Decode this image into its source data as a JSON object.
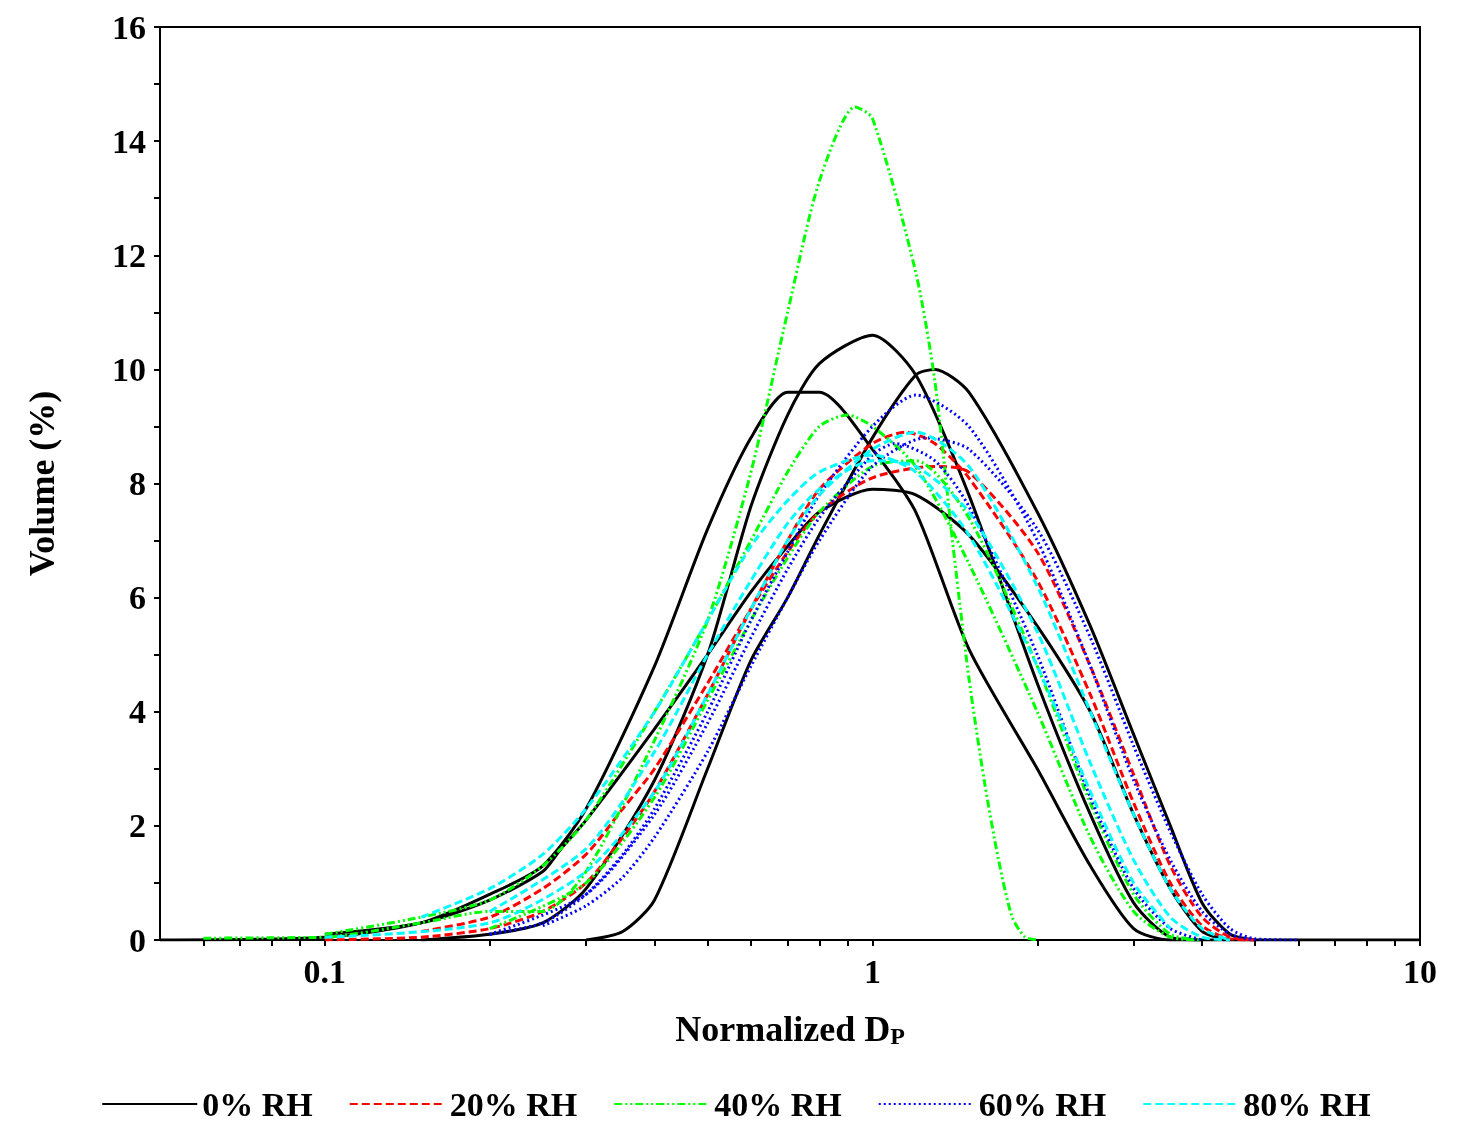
{
  "chart_data": {
    "type": "line",
    "xlabel": "Normalized D$_{P}$",
    "ylabel": "Volume (%)",
    "log": "x",
    "xlim": [
      0.05,
      10
    ],
    "ylim": [
      0,
      16
    ],
    "xticks": [
      {
        "value": 0.06,
        "label": null
      },
      {
        "value": 0.07,
        "label": null
      },
      {
        "value": 0.08,
        "label": null
      },
      {
        "value": 0.09,
        "label": null
      },
      {
        "value": 0.1,
        "label": "0.1"
      },
      {
        "value": 0.2,
        "label": null
      },
      {
        "value": 0.3,
        "label": null
      },
      {
        "value": 0.4,
        "label": null
      },
      {
        "value": 0.5,
        "label": null
      },
      {
        "value": 0.6,
        "label": null
      },
      {
        "value": 0.7,
        "label": null
      },
      {
        "value": 0.8,
        "label": null
      },
      {
        "value": 0.9,
        "label": null
      },
      1,
      {
        "value": 2,
        "label": null
      },
      {
        "value": 3,
        "label": null
      },
      {
        "value": 4,
        "label": null
      },
      {
        "value": 5,
        "label": null
      },
      {
        "value": 6,
        "label": null
      },
      {
        "value": 7,
        "label": null
      },
      {
        "value": 8,
        "label": null
      },
      {
        "value": 9,
        "label": null
      },
      10
    ],
    "yticks": [
      0,
      {
        "value": 1,
        "label": null
      },
      2,
      {
        "value": 3,
        "label": null
      },
      4,
      {
        "value": 5,
        "label": null
      },
      6,
      {
        "value": 7,
        "label": null
      },
      8,
      {
        "value": 9,
        "label": null
      },
      10,
      {
        "value": 11,
        "label": null
      },
      12,
      {
        "value": 13,
        "label": null
      },
      14,
      {
        "value": 15,
        "label": null
      },
      16
    ],
    "grid": false,
    "legend": "bottom",
    "marker": "none",
    "series": [
      {
        "name": "0% RH",
        "color": "#000000",
        "line_style": "solid",
        "x": [
          0.05,
          0.1,
          0.15,
          0.2,
          0.25,
          0.3,
          0.4,
          0.5,
          0.6,
          0.7,
          0.8,
          1,
          1.2,
          1.5,
          2,
          2.5,
          3,
          3.5,
          10
        ],
        "values": [
          0,
          0.05,
          0.3,
          0.8,
          1.3,
          2.3,
          4.8,
          7.2,
          8.8,
          9.6,
          9.6,
          8.6,
          7.5,
          5.1,
          3.0,
          1.3,
          0.2,
          0,
          0
        ]
      },
      {
        "color": "#000000",
        "line_style": "solid",
        "x": [
          0.15,
          0.2,
          0.25,
          0.3,
          0.4,
          0.5,
          0.6,
          0.7,
          0.8,
          1,
          1.2,
          1.5,
          2,
          2.5,
          3,
          3.5,
          4
        ],
        "values": [
          0,
          0.1,
          0.3,
          0.9,
          2.8,
          5.0,
          7.6,
          9.2,
          10.1,
          10.6,
          9.9,
          7.8,
          4.5,
          2.2,
          0.65,
          0.05,
          0
        ]
      },
      {
        "color": "#000000",
        "line_style": "solid",
        "x": [
          0.3,
          0.35,
          0.4,
          0.5,
          0.6,
          0.7,
          0.8,
          1,
          1.2,
          1.3,
          1.5,
          2,
          2.5,
          3,
          3.5,
          4,
          4.5,
          5
        ],
        "values": [
          0,
          0.15,
          0.7,
          3.0,
          4.9,
          6.0,
          7.1,
          8.8,
          9.9,
          10,
          9.6,
          7.5,
          5.5,
          3.6,
          2.0,
          0.65,
          0.1,
          0
        ]
      },
      {
        "color": "#000000",
        "line_style": "solid",
        "x": [
          0.1,
          0.15,
          0.2,
          0.25,
          0.27,
          0.3,
          0.4,
          0.5,
          0.6,
          0.7,
          0.8,
          1,
          1.2,
          1.5,
          2,
          2.5,
          3,
          3.5,
          4,
          4.5
        ],
        "values": [
          0.1,
          0.3,
          0.7,
          1.2,
          1.6,
          2.1,
          3.7,
          5.0,
          6.1,
          6.9,
          7.5,
          7.9,
          7.8,
          7.1,
          5.5,
          4.0,
          2.2,
          0.9,
          0.15,
          0
        ]
      },
      {
        "name": "20% RH",
        "color": "#ff0000",
        "line_style": "dashed",
        "x": [
          0.1,
          0.15,
          0.2,
          0.25,
          0.3,
          0.35,
          0.4,
          0.5,
          0.6,
          0.7,
          0.8,
          1,
          1.15,
          1.3,
          1.5,
          2,
          2.5,
          3,
          3.5,
          4,
          4.5,
          5
        ],
        "values": [
          0,
          0.05,
          0.2,
          0.5,
          1.0,
          1.8,
          2.6,
          4.3,
          5.8,
          7.0,
          7.9,
          8.7,
          8.9,
          8.7,
          8.1,
          6.3,
          4.3,
          2.4,
          1.0,
          0.25,
          0.02,
          0
        ]
      },
      {
        "color": "#ff0000",
        "line_style": "dashed",
        "x": [
          0.15,
          0.2,
          0.25,
          0.3,
          0.35,
          0.4,
          0.5,
          0.6,
          0.7,
          0.8,
          1,
          1.3,
          1.5,
          2,
          2.5,
          3,
          3.5,
          4,
          4.5,
          5
        ],
        "values": [
          0.15,
          0.4,
          0.9,
          1.5,
          2.3,
          3.0,
          4.5,
          5.8,
          6.8,
          7.5,
          8.1,
          8.3,
          8.2,
          6.8,
          4.8,
          2.9,
          1.3,
          0.4,
          0.05,
          0
        ]
      },
      {
        "name": "40% RH",
        "color": "#00ff00",
        "line_style": "dashdot",
        "x": [
          0.06,
          0.08,
          0.1,
          0.15,
          0.2,
          0.25,
          0.3,
          0.4,
          0.5,
          0.6,
          0.7,
          0.8,
          0.93,
          1,
          1.2,
          1.3,
          1.4,
          1.5,
          1.6,
          1.7,
          1.8,
          1.9,
          2
        ],
        "values": [
          0.03,
          0.04,
          0.05,
          0.3,
          0.5,
          0.5,
          1.2,
          3.5,
          5.6,
          8.2,
          11.0,
          13.3,
          14.6,
          14.4,
          11.7,
          9.8,
          7.0,
          4.6,
          2.8,
          1.4,
          0.4,
          0.05,
          0
        ]
      },
      {
        "color": "#00ff00",
        "line_style": "dashdot",
        "x": [
          0.1,
          0.15,
          0.2,
          0.25,
          0.3,
          0.4,
          0.5,
          0.6,
          0.7,
          0.8,
          0.9,
          1,
          1.2,
          1.5,
          2,
          2.5,
          3,
          3.5,
          4
        ],
        "values": [
          0.1,
          0.4,
          0.7,
          1.3,
          2.1,
          4.0,
          5.6,
          7.0,
          8.2,
          9.0,
          9.2,
          9.0,
          8.3,
          6.6,
          4.0,
          1.8,
          0.5,
          0.05,
          0
        ]
      },
      {
        "color": "#00ff00",
        "line_style": "dashdot",
        "x": [
          0.2,
          0.3,
          0.4,
          0.5,
          0.6,
          0.7,
          0.8,
          1,
          1.2,
          1.5,
          2,
          2.5,
          3,
          3.5,
          4
        ],
        "values": [
          0.2,
          1.0,
          2.5,
          4.2,
          5.6,
          6.7,
          7.5,
          8.3,
          8.4,
          7.4,
          4.8,
          2.4,
          0.8,
          0.1,
          0
        ]
      },
      {
        "name": "60% RH",
        "color": "#0000ff",
        "line_style": "dotted",
        "x": [
          0.2,
          0.25,
          0.3,
          0.35,
          0.4,
          0.5,
          0.6,
          0.7,
          0.8,
          1,
          1.2,
          1.5,
          2,
          2.5,
          3,
          3.5,
          4,
          4.5,
          5
        ],
        "values": [
          0.1,
          0.3,
          0.8,
          1.5,
          2.3,
          4.0,
          5.6,
          6.8,
          7.8,
          9.0,
          9.55,
          9.0,
          7.0,
          4.8,
          2.8,
          1.4,
          0.5,
          0.1,
          0
        ]
      },
      {
        "color": "#0000ff",
        "line_style": "dotted",
        "x": [
          0.25,
          0.3,
          0.35,
          0.4,
          0.5,
          0.6,
          0.7,
          0.8,
          1,
          1.25,
          1.5,
          2,
          2.5,
          3,
          3.5,
          4,
          4.5,
          5,
          6
        ],
        "values": [
          0.25,
          0.6,
          1.1,
          1.8,
          3.3,
          4.8,
          6.0,
          7.0,
          8.3,
          8.8,
          8.6,
          7.2,
          5.3,
          3.4,
          1.9,
          0.8,
          0.2,
          0.02,
          0
        ]
      },
      {
        "color": "#0000ff",
        "line_style": "dotted",
        "x": [
          0.2,
          0.3,
          0.4,
          0.5,
          0.6,
          0.7,
          0.8,
          1,
          1.1,
          1.3,
          1.5,
          2,
          2.5,
          3,
          3.5,
          4
        ],
        "values": [
          0.1,
          0.8,
          2.2,
          3.8,
          5.3,
          6.5,
          7.4,
          8.5,
          8.7,
          8.4,
          7.6,
          5.0,
          2.5,
          0.9,
          0.2,
          0
        ]
      },
      {
        "name": "80% RH",
        "color": "#00ffff",
        "line_style": "dashed",
        "x": [
          0.1,
          0.2,
          0.3,
          0.4,
          0.5,
          0.6,
          0.7,
          0.8,
          1,
          1.2,
          1.5,
          2,
          2.5,
          3,
          3.5,
          4,
          4.5
        ],
        "values": [
          0.05,
          0.3,
          1.2,
          2.6,
          4.3,
          5.8,
          7.0,
          7.8,
          8.6,
          8.9,
          8.3,
          6.2,
          4.0,
          2.2,
          0.9,
          0.2,
          0
        ]
      },
      {
        "color": "#00ffff",
        "line_style": "dashed",
        "x": [
          0.15,
          0.2,
          0.25,
          0.3,
          0.4,
          0.5,
          0.6,
          0.7,
          0.8,
          1,
          1.2,
          1.5,
          2,
          2.5,
          3,
          3.5
        ],
        "values": [
          0.4,
          0.9,
          1.5,
          2.3,
          4.0,
          5.6,
          6.9,
          7.7,
          8.2,
          8.5,
          8.2,
          7.1,
          4.8,
          2.6,
          1.0,
          0.2
        ]
      },
      {
        "color": "#00ffff",
        "line_style": "dashed",
        "x": [
          0.2,
          0.3,
          0.4,
          0.5,
          0.6,
          0.7,
          0.8,
          1,
          1.2,
          1.5,
          2,
          2.5,
          3,
          3.5,
          4,
          4.5
        ],
        "values": [
          0.5,
          1.6,
          3.3,
          5.0,
          6.3,
          7.3,
          7.9,
          8.4,
          8.3,
          7.5,
          5.4,
          3.1,
          1.4,
          0.4,
          0.05,
          0
        ]
      }
    ]
  }
}
